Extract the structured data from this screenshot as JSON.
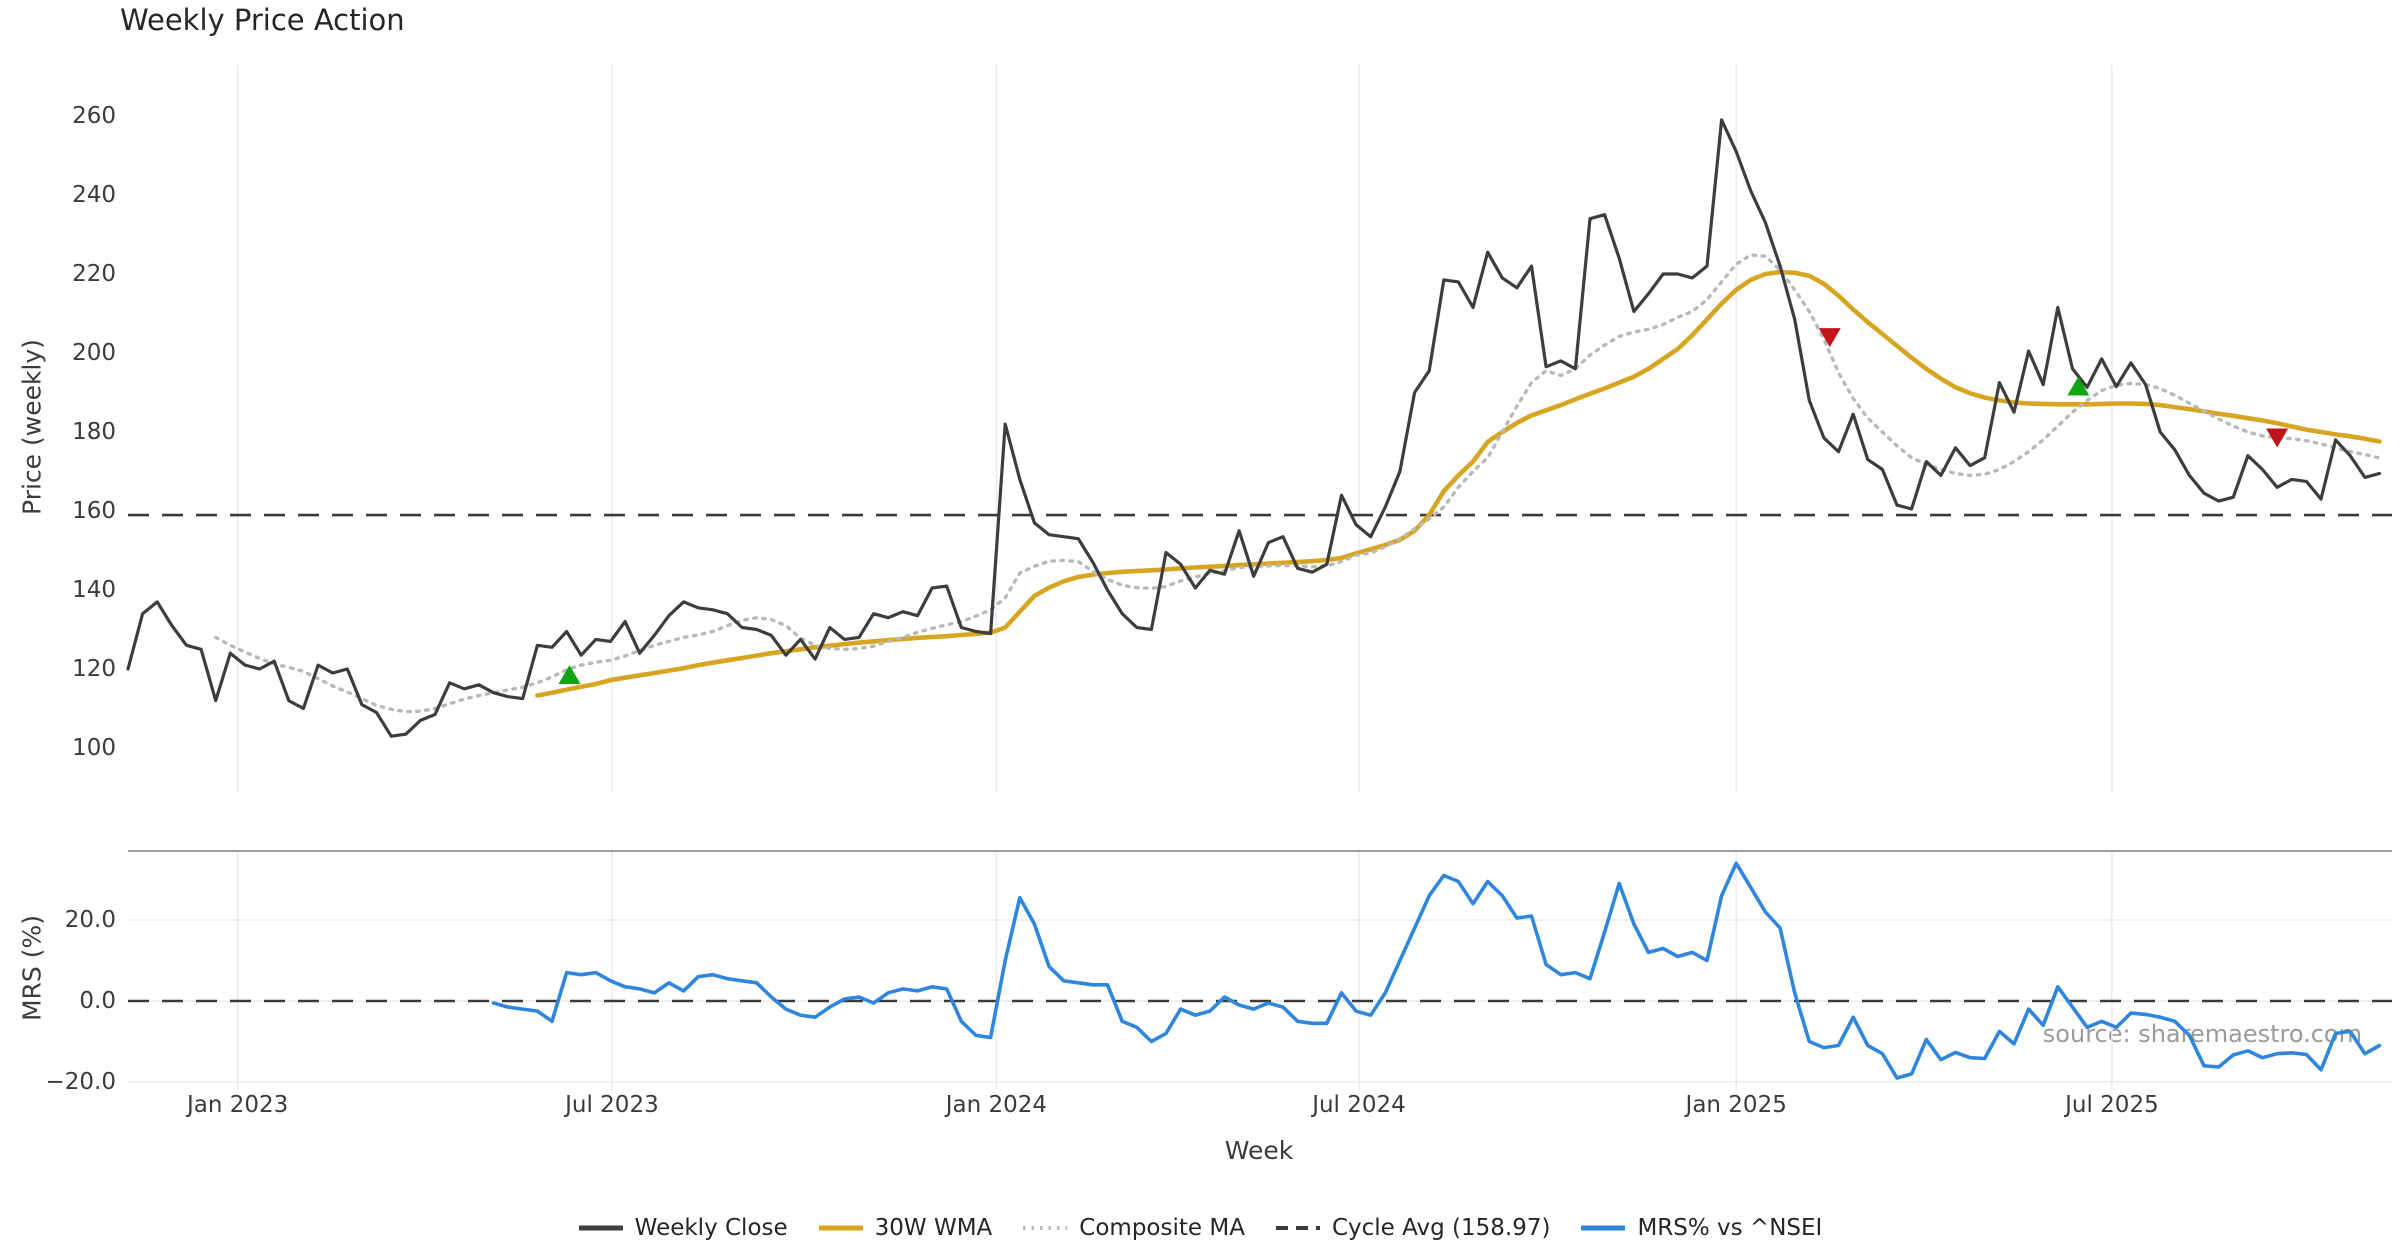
{
  "title": "Weekly Price Action",
  "source_note": "source: sharemaestro.com",
  "axes": {
    "price_ylabel": "Price (weekly)",
    "mrs_ylabel": "MRS (%)",
    "xlabel": "Week"
  },
  "colors": {
    "weekly_close": "#3d3d3d",
    "wma30": "#d7a521",
    "composite_ma": "#b9b9b9",
    "cycle_avg": "#3a3a3a",
    "mrs": "#2e86de",
    "buy": "#0ea50e",
    "sell": "#c4121c",
    "grid": "#ececec",
    "spine": "#8f8f8f",
    "text": "#3b3b3b"
  },
  "legend": [
    {
      "label": "Weekly Close",
      "color_key": "weekly_close",
      "dash": "solid"
    },
    {
      "label": "30W WMA",
      "color_key": "wma30",
      "dash": "solid"
    },
    {
      "label": "Composite MA",
      "color_key": "composite_ma",
      "dash": "dotted"
    },
    {
      "label": "Cycle Avg (158.97)",
      "color_key": "cycle_avg",
      "dash": "dashed"
    },
    {
      "label": "MRS% vs ^NSEI",
      "color_key": "mrs",
      "dash": "solid"
    }
  ],
  "chart_data": [
    {
      "type": "line",
      "panel": "price",
      "title": "Weekly Price Action",
      "xlabel": "Week",
      "ylabel": "Price (weekly)",
      "x_unit": "week_index",
      "ylim": [
        89,
        273
      ],
      "grid": "vertical-only",
      "yticks": [
        {
          "label": "100",
          "value": 100
        },
        {
          "label": "120",
          "value": 120
        },
        {
          "label": "140",
          "value": 140
        },
        {
          "label": "160",
          "value": 160
        },
        {
          "label": "180",
          "value": 180
        },
        {
          "label": "200",
          "value": 200
        },
        {
          "label": "220",
          "value": 220
        },
        {
          "label": "240",
          "value": 240
        },
        {
          "label": "260",
          "value": 260
        }
      ],
      "x_ticks": [
        {
          "label": "Jan 2023",
          "week": 7.5
        },
        {
          "label": "Jul 2023",
          "week": 33.1
        },
        {
          "label": "Jan 2024",
          "week": 59.4
        },
        {
          "label": "Jul 2024",
          "week": 84.2
        },
        {
          "label": "Jan 2025",
          "week": 110.0
        },
        {
          "label": "Jul 2025",
          "week": 135.7
        }
      ],
      "cycle_avg": 158.97,
      "series": [
        {
          "name": "Weekly Close",
          "start_week": 0,
          "values": [
            120,
            134,
            137,
            131,
            126,
            125,
            112,
            124,
            121,
            120,
            122,
            112,
            110,
            121,
            119,
            120,
            111,
            109,
            103,
            103.5,
            107,
            108.5,
            116.5,
            115,
            116,
            114,
            113,
            112.5,
            126,
            125.5,
            129.5,
            123.5,
            127.5,
            127,
            132,
            124,
            128.5,
            133.5,
            137,
            135.5,
            135,
            134,
            130.5,
            130,
            128.5,
            123.5,
            127.5,
            122.5,
            130.5,
            127.5,
            128,
            134,
            133,
            134.5,
            133.5,
            140.5,
            141,
            130.5,
            129.5,
            129,
            182,
            168,
            157,
            154,
            153.5,
            153,
            147,
            140,
            134,
            130.5,
            130,
            149.5,
            146.5,
            140.5,
            145,
            144,
            155,
            143.5,
            152,
            153.5,
            145.5,
            144.5,
            146.5,
            164,
            156.5,
            153.5,
            161,
            170,
            190,
            195.5,
            218.5,
            218,
            211.5,
            225.5,
            219,
            216.5,
            222,
            196.5,
            198,
            196,
            234,
            235,
            224,
            210.5,
            215,
            220,
            220,
            219,
            222,
            259,
            251,
            241,
            233,
            222,
            208.5,
            188,
            178.5,
            175,
            184.5,
            173,
            170.5,
            161.5,
            160.5,
            172.5,
            169,
            176,
            171.5,
            173.5,
            192.5,
            185,
            200.5,
            192,
            211.5,
            196,
            191.3,
            198.5,
            191.5,
            197.5,
            192,
            180,
            175.5,
            169,
            164.5,
            162.5,
            163.5,
            174,
            170.5,
            166,
            168,
            167.5,
            163,
            178,
            174,
            168.5,
            169.5
          ]
        },
        {
          "name": "30W WMA",
          "start_week": 28,
          "values": [
            113.3,
            114,
            114.8,
            115.5,
            116.2,
            117.2,
            117.8,
            118.4,
            119,
            119.6,
            120.2,
            121,
            121.6,
            122.2,
            122.8,
            123.4,
            124,
            124.5,
            125,
            125.5,
            125.9,
            126.3,
            126.7,
            127,
            127.3,
            127.6,
            127.9,
            128.1,
            128.3,
            128.6,
            128.9,
            129.2,
            130.5,
            134.5,
            138.5,
            140.6,
            142.2,
            143.3,
            143.9,
            144.3,
            144.6,
            144.8,
            145,
            145.2,
            145.5,
            145.7,
            145.9,
            146.1,
            146.3,
            146.5,
            146.7,
            146.9,
            147.1,
            147.3,
            147.6,
            148.1,
            149.3,
            150.3,
            151.4,
            152.7,
            155,
            159,
            165,
            169,
            172.5,
            177.5,
            180,
            182.3,
            184.2,
            185.5,
            186.8,
            188.3,
            189.7,
            191,
            192.5,
            194,
            196,
            198.5,
            201,
            204.5,
            208.5,
            212.5,
            216,
            218.5,
            220,
            220.5,
            220.3,
            219.5,
            217.5,
            214.5,
            211,
            207.8,
            204.8,
            201.8,
            198.8,
            196,
            193.5,
            191.3,
            189.8,
            188.7,
            188,
            187.5,
            187.2,
            187.1,
            187,
            187,
            187,
            187.1,
            187.2,
            187.2,
            187.1,
            186.8,
            186.3,
            185.8,
            185.2,
            184.6,
            184.1,
            183.5,
            182.9,
            182.2,
            181.4,
            180.6,
            180,
            179.4,
            178.9,
            178.3,
            177.6
          ]
        },
        {
          "name": "Composite MA",
          "start_week": 6,
          "values": [
            128,
            126,
            124.3,
            122.7,
            121.3,
            120.4,
            119.4,
            117.6,
            115.7,
            114.2,
            112.5,
            110.8,
            109.8,
            109.2,
            109.3,
            110,
            111.2,
            112.4,
            113.3,
            114,
            114.7,
            115.4,
            116.5,
            118,
            119.8,
            121,
            121.7,
            122.2,
            123.3,
            124.7,
            126,
            127,
            128,
            128.6,
            129.5,
            131,
            132.3,
            133,
            132.5,
            131,
            127.8,
            126,
            125.2,
            125,
            125.2,
            125.8,
            127,
            128,
            129.3,
            130.3,
            131.2,
            132,
            133.4,
            135,
            138,
            144.3,
            146,
            147.3,
            147.5,
            147.2,
            144.7,
            142.7,
            141.2,
            140.6,
            140.4,
            140.9,
            142.3,
            143.3,
            144.2,
            144.9,
            145.7,
            145.9,
            146.1,
            146.2,
            146.2,
            145.9,
            146.1,
            147.2,
            148.8,
            149.4,
            151,
            153,
            155.5,
            158,
            161,
            166,
            170,
            173.5,
            180,
            186.5,
            192.5,
            195.5,
            194.3,
            196,
            199.5,
            202,
            204.2,
            205.3,
            206,
            207.2,
            209,
            210.5,
            213.5,
            218,
            222.5,
            224.8,
            224.5,
            221,
            216,
            210.5,
            203.5,
            195,
            188.5,
            183.5,
            180,
            176.5,
            173.5,
            171.8,
            170.5,
            169.5,
            169,
            169.3,
            170.5,
            172.5,
            175,
            178,
            181.5,
            185,
            188,
            190.5,
            191.8,
            192.3,
            192,
            191,
            189.3,
            187.3,
            185.3,
            183.3,
            181.5,
            180,
            179,
            178.5,
            178.3,
            177.8,
            177,
            176,
            175,
            174.3,
            173.4
          ]
        }
      ],
      "markers": [
        {
          "type": "buy",
          "week": 30.2,
          "value": 118.5
        },
        {
          "type": "sell",
          "week": 116.4,
          "value": 204
        },
        {
          "type": "buy",
          "week": 133.4,
          "value": 191.5
        },
        {
          "type": "sell",
          "week": 147,
          "value": 178.6
        }
      ]
    },
    {
      "type": "line",
      "panel": "mrs",
      "ylabel": "MRS (%)",
      "x_unit": "week_index",
      "ylim": [
        -22,
        37
      ],
      "zero_line": 0,
      "yticks": [
        {
          "label": "20.0",
          "value": 20
        },
        {
          "label": "0.0",
          "value": 0
        },
        {
          "label": "−20.0",
          "value": -20
        }
      ],
      "series": [
        {
          "name": "MRS% vs ^NSEI",
          "start_week": 25,
          "values": [
            -0.5,
            -1.5,
            -2,
            -2.5,
            -5,
            7,
            6.5,
            7,
            5,
            3.5,
            3,
            2,
            4.5,
            2.5,
            6,
            6.5,
            5.5,
            5,
            4.5,
            1,
            -2,
            -3.5,
            -4,
            -1.5,
            0.5,
            1,
            -0.5,
            2,
            3,
            2.5,
            3.5,
            3,
            -5,
            -8.5,
            -9,
            10,
            25.5,
            19,
            8.5,
            5,
            4.5,
            4,
            4,
            -5,
            -6.5,
            -10,
            -8,
            -2,
            -3.5,
            -2.5,
            1,
            -1,
            -2,
            -0.5,
            -1.5,
            -5,
            -5.5,
            -5.5,
            2,
            -2.5,
            -3.5,
            2,
            10,
            18,
            26,
            31,
            29.5,
            24,
            29.5,
            26,
            20.5,
            21,
            9,
            6.5,
            7,
            5.5,
            17,
            29,
            19,
            12,
            13,
            11,
            12,
            10,
            26,
            34,
            28,
            22,
            18,
            2,
            -10,
            -11.5,
            -11,
            -4,
            -11,
            -13,
            -19,
            -18,
            -9.5,
            -14.5,
            -12.7,
            -14,
            -14.2,
            -7.5,
            -10.6,
            -2,
            -6,
            3.5,
            -1.5,
            -6.5,
            -5,
            -6.5,
            -3,
            -3.3,
            -4,
            -5,
            -8.5,
            -16,
            -16.3,
            -13.3,
            -12.3,
            -14,
            -13,
            -12.8,
            -13.2,
            -17,
            -8,
            -7.5,
            -13,
            -11
          ]
        }
      ]
    }
  ]
}
